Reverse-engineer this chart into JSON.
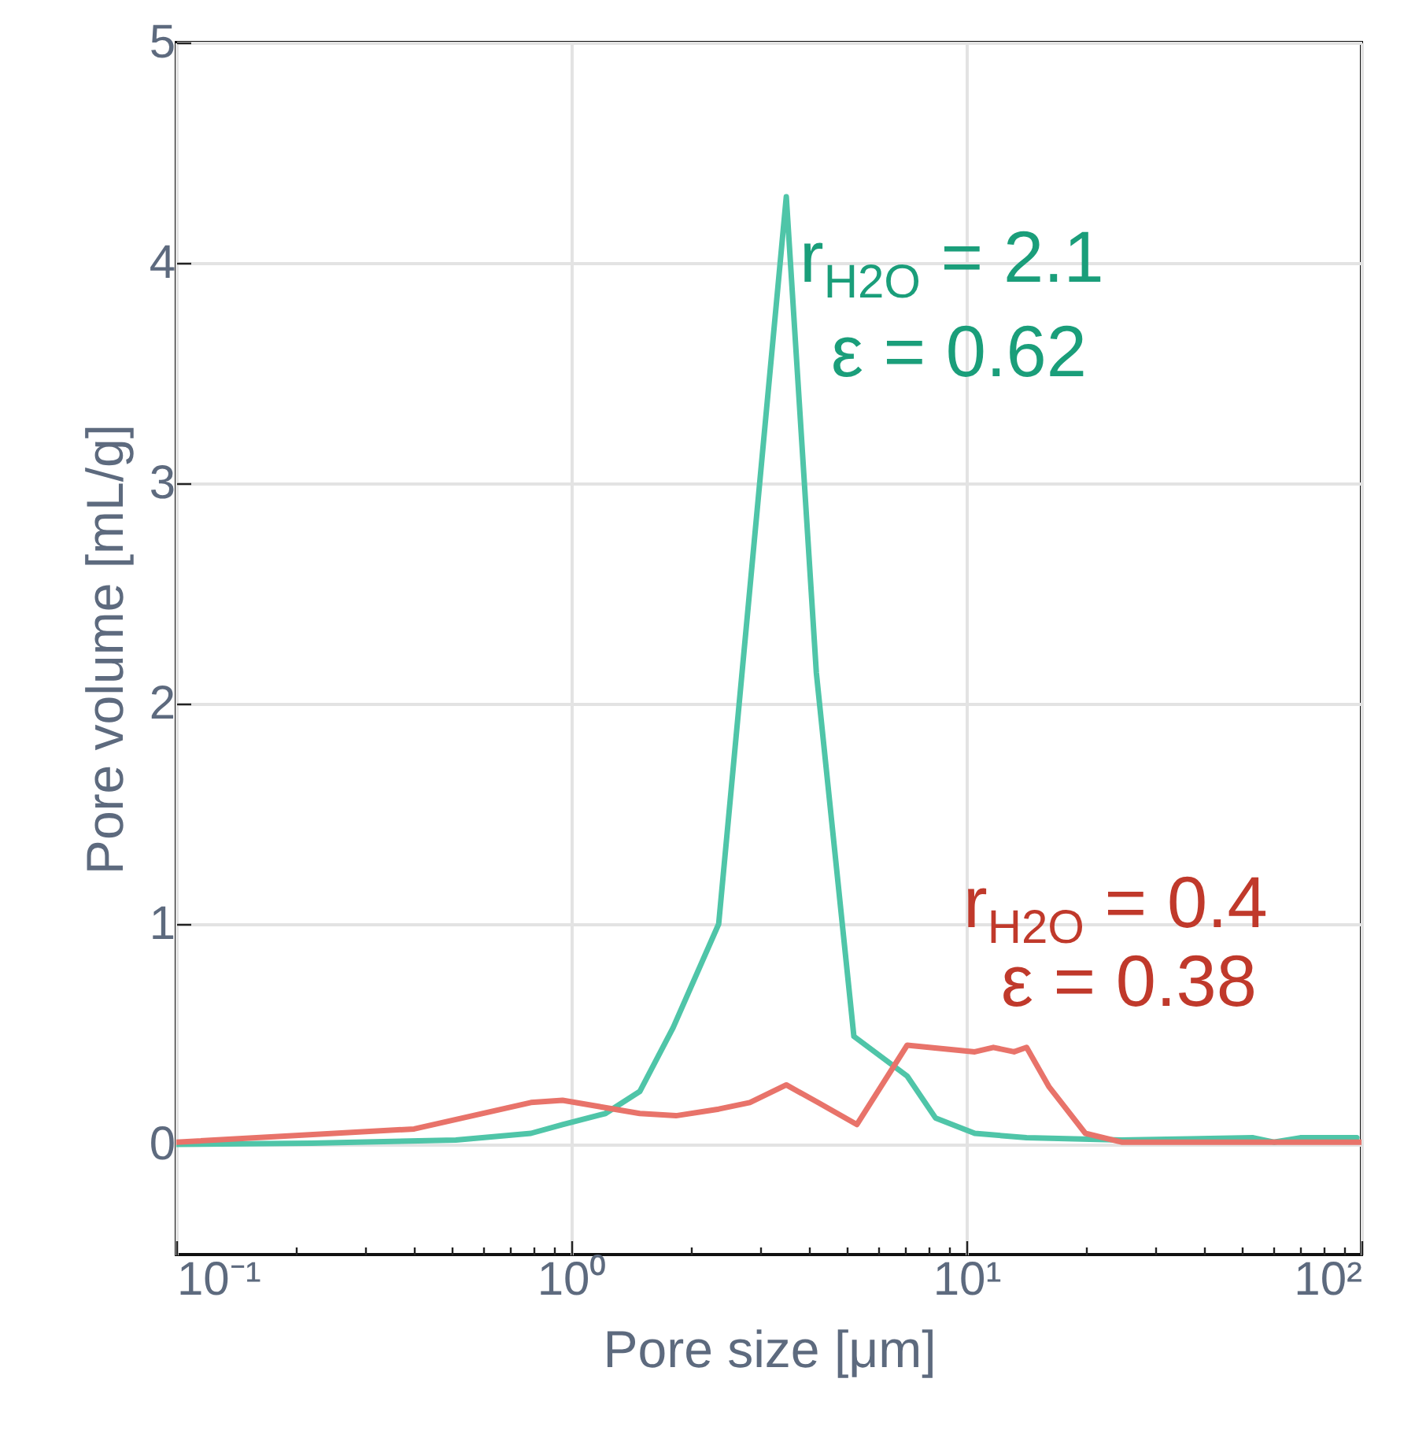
{
  "chart_data": {
    "type": "line",
    "xlabel": "Pore size [μm]",
    "ylabel": "Pore volume [mL/g]",
    "log": "x",
    "grid": true,
    "xlim": [
      0.1,
      100
    ],
    "ylim": [
      -0.5,
      5
    ],
    "xticks": [
      {
        "value": 0.1,
        "label": "10⁻¹"
      },
      {
        "value": 0.2,
        "label": null
      },
      {
        "value": 0.3,
        "label": null
      },
      {
        "value": 0.4,
        "label": null
      },
      {
        "value": 0.5,
        "label": null
      },
      {
        "value": 0.6,
        "label": null
      },
      {
        "value": 0.7,
        "label": null
      },
      {
        "value": 0.8,
        "label": null
      },
      {
        "value": 0.9,
        "label": null
      },
      {
        "value": 1,
        "label": "10⁰"
      },
      {
        "value": 2,
        "label": null
      },
      {
        "value": 3,
        "label": null
      },
      {
        "value": 4,
        "label": null
      },
      {
        "value": 5,
        "label": null
      },
      {
        "value": 6,
        "label": null
      },
      {
        "value": 7,
        "label": null
      },
      {
        "value": 8,
        "label": null
      },
      {
        "value": 9,
        "label": null
      },
      {
        "value": 10,
        "label": "10¹"
      },
      {
        "value": 20,
        "label": null
      },
      {
        "value": 30,
        "label": null
      },
      {
        "value": 40,
        "label": null
      },
      {
        "value": 50,
        "label": null
      },
      {
        "value": 60,
        "label": null
      },
      {
        "value": 70,
        "label": null
      },
      {
        "value": 80,
        "label": null
      },
      {
        "value": 90,
        "label": null
      },
      {
        "value": 100,
        "label": "10²"
      }
    ],
    "yticks": [
      0,
      1,
      2,
      3,
      4,
      5
    ],
    "series": [
      {
        "name": "r$_{H2O}$ = 2.1",
        "color": "#4fc5a8",
        "x": [
          0.1,
          0.22,
          0.51,
          0.79,
          0.95,
          1.22,
          1.49,
          1.81,
          2.36,
          3.5,
          4.17,
          5.19,
          7.08,
          8.35,
          10.5,
          14.2,
          24.7,
          53.2,
          60,
          70,
          97.3
        ],
        "values": [
          0,
          0.005,
          0.02,
          0.05,
          0.09,
          0.14,
          0.24,
          0.53,
          1.0,
          4.3,
          2.14,
          0.49,
          0.31,
          0.12,
          0.05,
          0.03,
          0.02,
          0.03,
          0.01,
          0.03,
          0.03
        ]
      },
      {
        "name": "r$_{H2O}$ = 0.4",
        "color": "#e8736a",
        "x": [
          0.1,
          0.4,
          0.79,
          0.95,
          1.49,
          1.84,
          2.36,
          2.83,
          3.5,
          4.21,
          5.28,
          7.08,
          10.5,
          11.7,
          13.2,
          14.2,
          16.2,
          20,
          24.7,
          100
        ],
        "values": [
          0.01,
          0.07,
          0.19,
          0.2,
          0.14,
          0.13,
          0.16,
          0.19,
          0.27,
          0.19,
          0.09,
          0.45,
          0.42,
          0.44,
          0.42,
          0.44,
          0.26,
          0.05,
          0.01,
          0.01
        ]
      }
    ],
    "annotations": [
      "ε = 0.62",
      "ε = 0.38"
    ]
  }
}
